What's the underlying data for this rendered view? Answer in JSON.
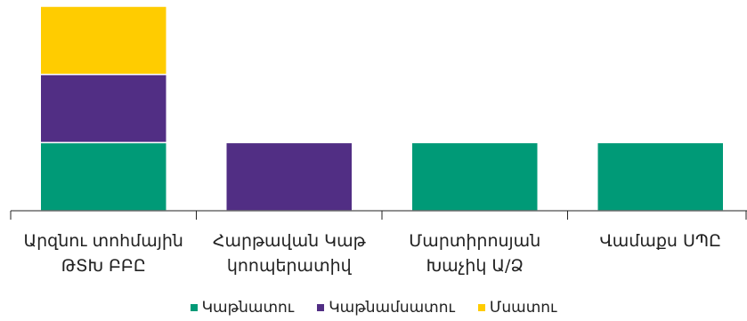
{
  "chart_data": {
    "type": "bar",
    "stacked": true,
    "categories": [
      "Արզնու տոհմային\nԹՏԽ ԲԲԸ",
      "Հարթավան Կաթ\nկոոպերատիվ",
      "Մարտիրոսյան\nԽաչիկ Ա/Ձ",
      "Վամաքս ՍՊԸ"
    ],
    "series": [
      {
        "name": "Կաթնատու",
        "color": "#009a77",
        "values": [
          1,
          0,
          1,
          1
        ]
      },
      {
        "name": "Կաթնամսատու",
        "color": "#512e84",
        "values": [
          1,
          1,
          0,
          0
        ]
      },
      {
        "name": "Մսատու",
        "color": "#ffcc00",
        "values": [
          1,
          0,
          0,
          0
        ]
      }
    ],
    "ylim": [
      0,
      3
    ],
    "grid": false,
    "legend_position": "bottom"
  }
}
